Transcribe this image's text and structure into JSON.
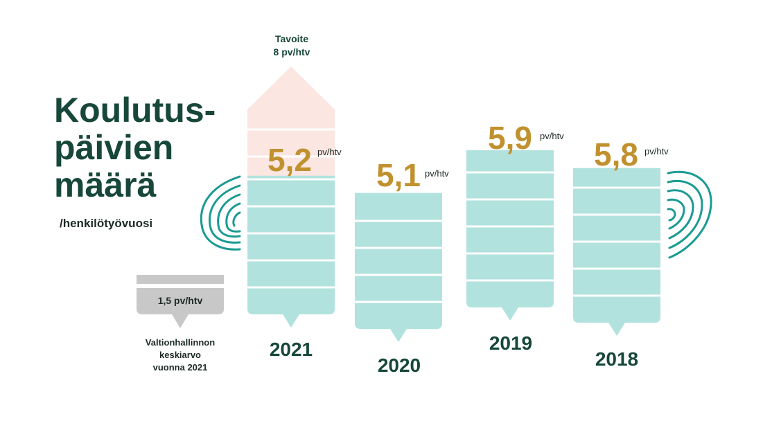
{
  "title_lines": [
    "Koulutus-",
    "päivien",
    "määrä"
  ],
  "subtitle": "/henkilötyövuosi",
  "target": {
    "label": "Tavoite",
    "value_text": "8 pv/htv",
    "value": 8
  },
  "chart_data": {
    "type": "bar",
    "categories": [
      "2021",
      "2020",
      "2019",
      "2018"
    ],
    "values": [
      5.2,
      5.1,
      5.9,
      5.8
    ],
    "value_labels": [
      "5,2",
      "5,1",
      "5,9",
      "5,8"
    ],
    "unit": "pv/htv",
    "target": 8,
    "reference": {
      "value": 1.5,
      "value_text": "1,5 pv/htv",
      "caption_lines": [
        "Valtionhallinnon",
        "keskiarvo",
        "vuonna 2021"
      ]
    }
  },
  "colors": {
    "bar": "#b1e2de",
    "target_fill": "#fbe6e2",
    "value": "#c0912e",
    "title": "#17473a",
    "reference": "#c8c8c8",
    "fingerprint": "#1a9a93"
  }
}
